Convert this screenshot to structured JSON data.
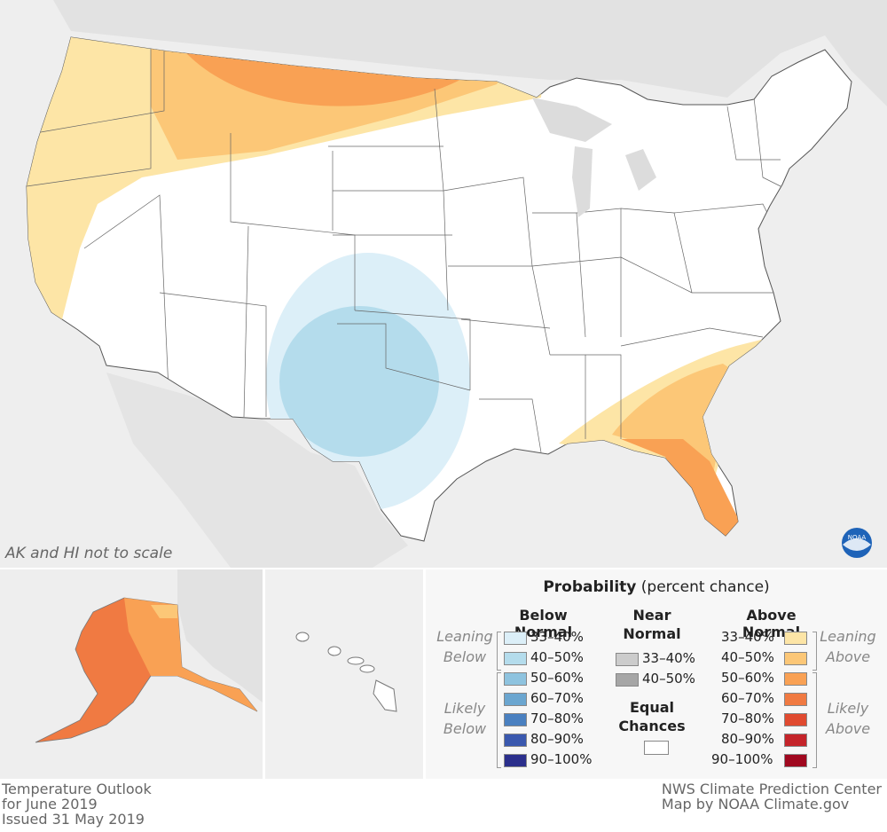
{
  "map": {
    "scale_note": "AK and HI not to scale",
    "logo_text": "NOAA"
  },
  "legend": {
    "title_bold": "Probability",
    "title_rest": "(percent chance)",
    "below_head": "Below Normal",
    "near_head_1": "Near",
    "near_head_2": "Normal",
    "above_head": "Above Normal",
    "equal_1": "Equal",
    "equal_2": "Chances",
    "leaning_below_1": "Leaning",
    "leaning_below_2": "Below",
    "likely_below_1": "Likely",
    "likely_below_2": "Below",
    "leaning_above_1": "Leaning",
    "leaning_above_2": "Above",
    "likely_above_1": "Likely",
    "likely_above_2": "Above",
    "below": [
      {
        "label": "33–40%",
        "color": "#dceff8"
      },
      {
        "label": "40–50%",
        "color": "#b4dcec"
      },
      {
        "label": "50–60%",
        "color": "#8ec3df"
      },
      {
        "label": "60–70%",
        "color": "#6ba6d0"
      },
      {
        "label": "70–80%",
        "color": "#4a80c0"
      },
      {
        "label": "80–90%",
        "color": "#3a58ae"
      },
      {
        "label": "90–100%",
        "color": "#2b2f8c"
      }
    ],
    "near": [
      {
        "label": "33–40%",
        "color": "#cccccc"
      },
      {
        "label": "40–50%",
        "color": "#a6a6a6"
      }
    ],
    "above": [
      {
        "label": "33–40%",
        "color": "#fde5a6"
      },
      {
        "label": "40–50%",
        "color": "#fcc777"
      },
      {
        "label": "50–60%",
        "color": "#f9a154"
      },
      {
        "label": "60–70%",
        "color": "#f07a42"
      },
      {
        "label": "70–80%",
        "color": "#e04a30"
      },
      {
        "label": "80–90%",
        "color": "#c4242a"
      },
      {
        "label": "90–100%",
        "color": "#a0081f"
      }
    ],
    "equal_color": "#ffffff"
  },
  "footer": {
    "left_1": "Temperature Outlook",
    "left_2": "for June 2019",
    "left_3": "Issued 31 May 2019",
    "right_1": "NWS Climate Prediction Center",
    "right_2": "Map by NOAA Climate.gov"
  }
}
